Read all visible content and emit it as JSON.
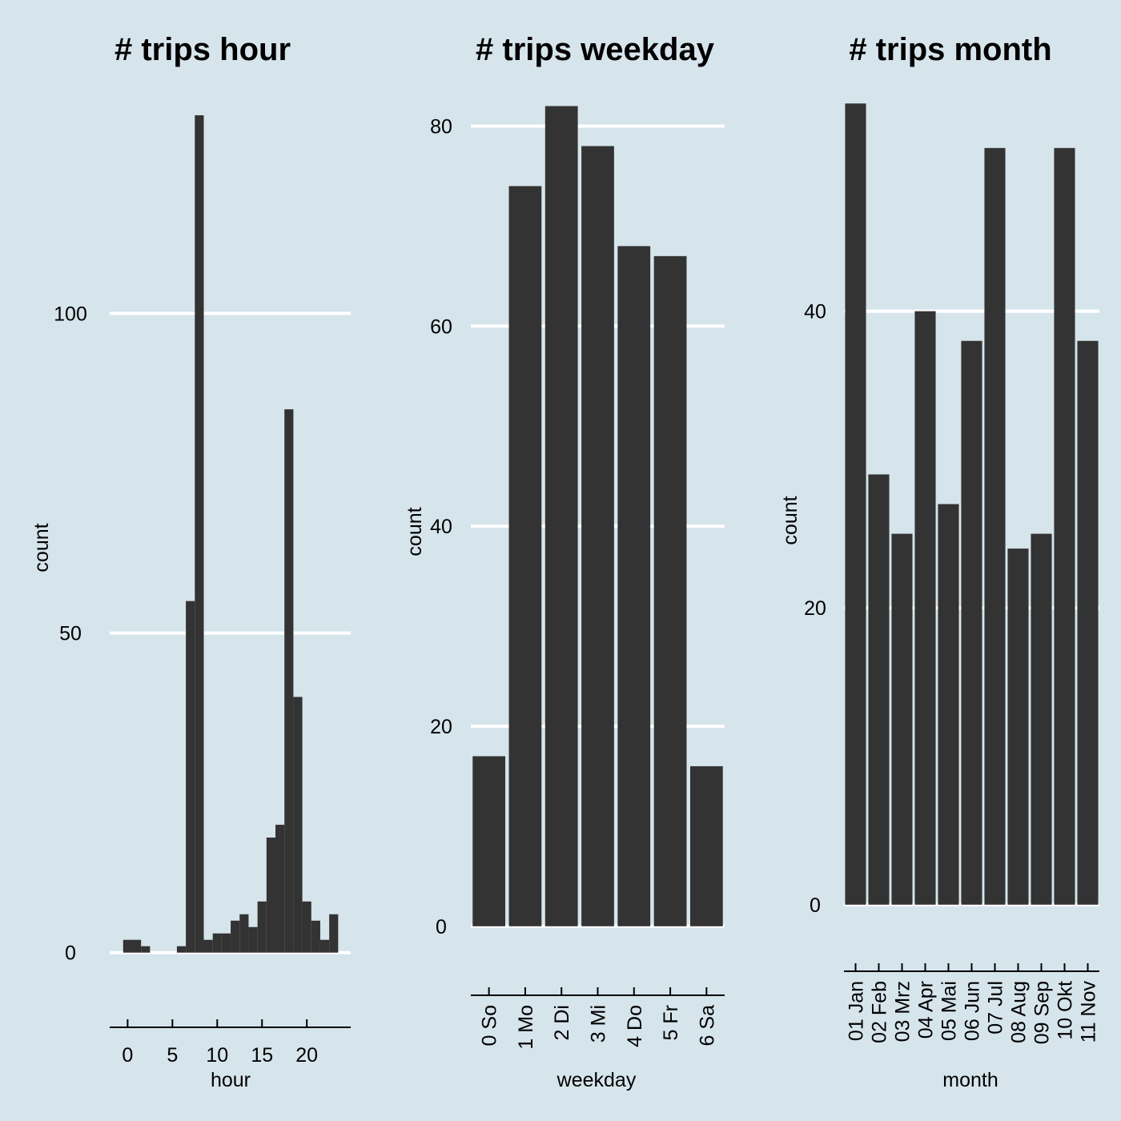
{
  "chart_data": [
    {
      "type": "bar",
      "title": "# trips hour",
      "xlabel": "hour",
      "ylabel": "count",
      "x": [
        0,
        1,
        2,
        3,
        4,
        5,
        6,
        7,
        8,
        9,
        10,
        11,
        12,
        13,
        14,
        15,
        16,
        17,
        18,
        19,
        20,
        21,
        22,
        23
      ],
      "values": [
        2,
        2,
        1,
        0,
        0,
        0,
        1,
        55,
        131,
        2,
        3,
        3,
        5,
        6,
        4,
        8,
        18,
        20,
        85,
        40,
        8,
        5,
        2,
        6
      ],
      "xticks": [
        "0",
        "5",
        "10",
        "15",
        "20"
      ],
      "xtick_values": [
        0,
        5,
        10,
        15,
        20
      ],
      "yticks": [
        "0",
        "50",
        "100"
      ],
      "ytick_values": [
        0,
        50,
        100
      ],
      "xlim": [
        -2,
        24.9
      ],
      "ylim": [
        -6.3,
        134
      ],
      "grid": true
    },
    {
      "type": "bar",
      "title": "# trips weekday",
      "xlabel": "weekday",
      "ylabel": "count",
      "categories": [
        "0 So",
        "1 Mo",
        "2 Di",
        "3 Mi",
        "4 Do",
        "5 Fr",
        "6 Sa"
      ],
      "values": [
        17,
        74,
        82,
        78,
        68,
        67,
        16
      ],
      "yticks": [
        "0",
        "20",
        "40",
        "60",
        "80"
      ],
      "ytick_values": [
        0,
        20,
        40,
        60,
        80
      ],
      "ylim": [
        -4.1,
        83
      ],
      "grid": true
    },
    {
      "type": "bar",
      "title": "# trips month",
      "xlabel": "month",
      "ylabel": "count",
      "categories": [
        "01 Jan",
        "02 Feb",
        "03 Mrz",
        "04 Apr",
        "05 Mai",
        "06 Jun",
        "07 Jul",
        "08 Aug",
        "09 Sep",
        "10 Okt",
        "11 Nov"
      ],
      "values": [
        54,
        29,
        25,
        40,
        27,
        38,
        51,
        24,
        25,
        51,
        38
      ],
      "yticks": [
        "0",
        "20",
        "40"
      ],
      "ytick_values": [
        0,
        20,
        40
      ],
      "ylim": [
        -2.6,
        54.5
      ],
      "grid": true
    }
  ]
}
